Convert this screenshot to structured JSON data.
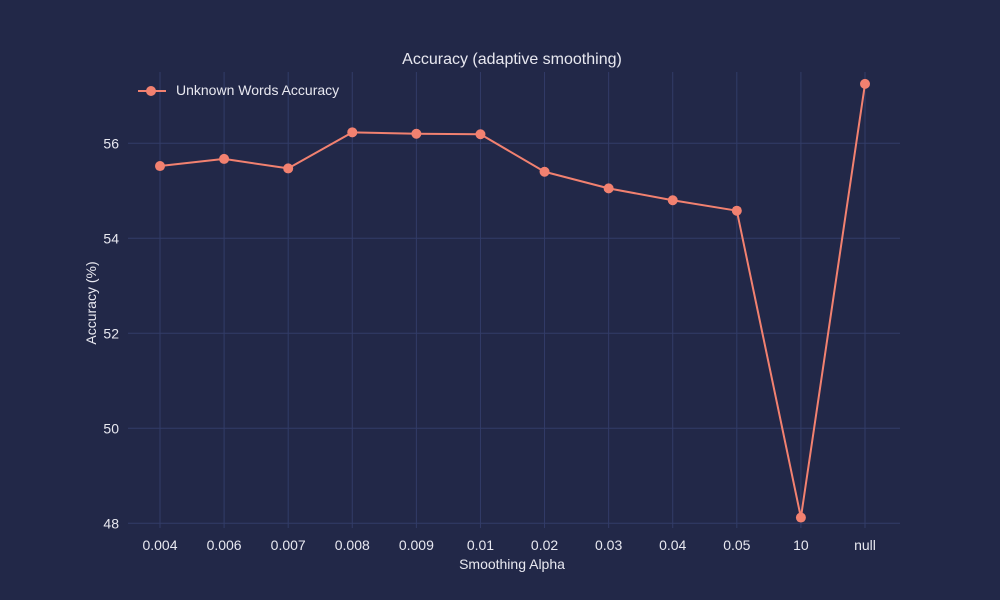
{
  "chart_data": {
    "type": "line",
    "title": "Accuracy (adaptive smoothing)",
    "xlabel": "Smoothing Alpha",
    "ylabel": "Accuracy (%)",
    "categories": [
      "0.004",
      "0.006",
      "0.007",
      "0.008",
      "0.009",
      "0.01",
      "0.02",
      "0.03",
      "0.04",
      "0.05",
      "10",
      "null"
    ],
    "series": [
      {
        "name": "Unknown Words Accuracy",
        "color": "#f28170",
        "values": [
          55.52,
          55.67,
          55.47,
          56.23,
          56.2,
          56.19,
          55.4,
          55.05,
          54.8,
          54.58,
          48.12,
          57.25
        ]
      }
    ],
    "ylim": [
      47.9,
      57.5
    ],
    "yticks": [
      48,
      50,
      52,
      54,
      56
    ],
    "grid": true,
    "legend_position": "top-left",
    "background": "#222848",
    "grid_color": "#323c68"
  }
}
